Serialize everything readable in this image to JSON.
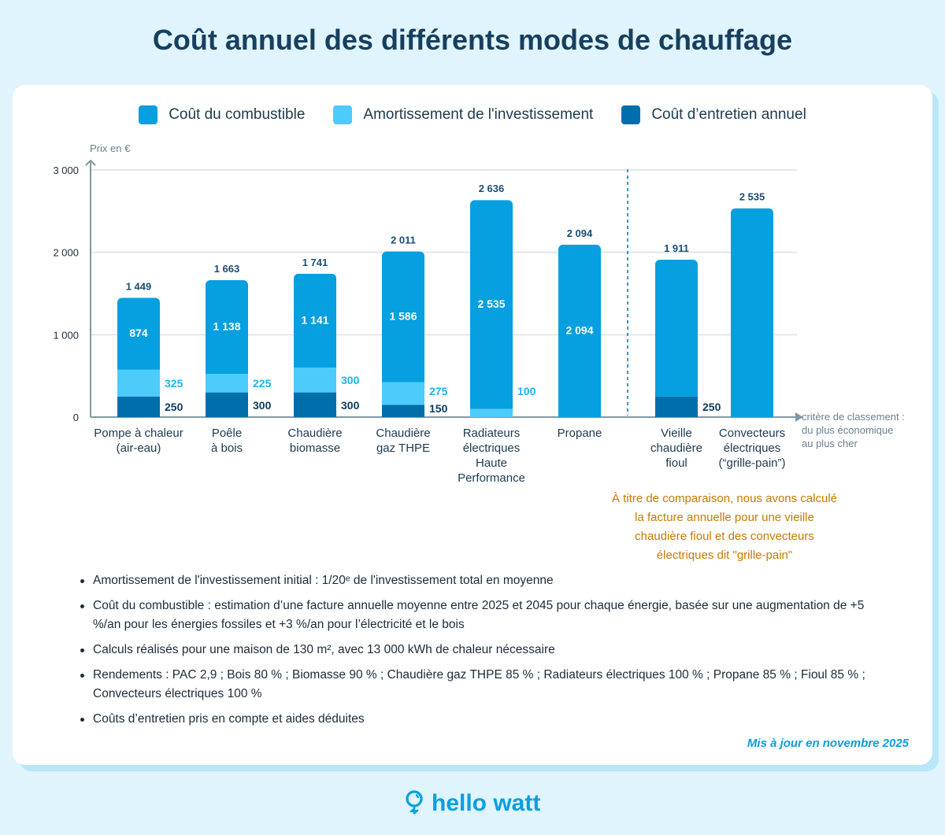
{
  "title": "Coût annuel des différents modes de chauffage",
  "colors": {
    "fuel": "#069fdf",
    "amortization": "#4dcbfb",
    "maintenance": "#006eab",
    "background": "#dff4fc",
    "accent_orange": "#c77a00"
  },
  "chart_data": {
    "type": "bar",
    "stacked": true,
    "ylabel": "Prix en €",
    "xlabel": "critère de classement : du plus économique au plus cher",
    "xlabel_lines": [
      "critère de classement :",
      "du plus économique",
      "au plus cher"
    ],
    "ylim": [
      0,
      3000
    ],
    "yticks": [
      0,
      1000,
      2000,
      3000
    ],
    "ytick_labels": [
      "0",
      "1 000",
      "2 000",
      "3 000"
    ],
    "grid": true,
    "legend_placement": "top",
    "categories": [
      [
        "Pompe à chaleur",
        "(air-eau)"
      ],
      [
        "Poêle",
        "à bois"
      ],
      [
        "Chaudière",
        "biomasse"
      ],
      [
        "Chaudière",
        "gaz THPE"
      ],
      [
        "Radiateurs",
        "électriques",
        "Haute",
        "Performance"
      ],
      [
        "Propane"
      ],
      [
        "Vieille",
        "chaudière",
        "fioul"
      ],
      [
        "Convecteurs",
        "électriques",
        "(“grille-pain”)"
      ]
    ],
    "series": [
      {
        "name": "Coût d’entretien annuel",
        "values": [
          250,
          300,
          300,
          150,
          0,
          0,
          250,
          0
        ],
        "labels": [
          "250",
          "300",
          "300",
          "150",
          "",
          "",
          "250",
          ""
        ]
      },
      {
        "name": "Amortissement de l'investissement",
        "values": [
          325,
          225,
          300,
          275,
          100,
          0,
          0,
          0
        ],
        "labels": [
          "325",
          "225",
          "300",
          "275",
          "100",
          "",
          "",
          ""
        ]
      },
      {
        "name": "Coût du combustible",
        "values": [
          874,
          1138,
          1141,
          1586,
          2535,
          2094,
          1661,
          2535
        ],
        "labels": [
          "874",
          "1 138",
          "1 141",
          "1 586",
          "2 535",
          "2 094",
          "",
          ""
        ]
      }
    ],
    "totals": [
      1449,
      1663,
      1741,
      2011,
      2636,
      2094,
      1911,
      2535
    ],
    "total_labels": [
      "1 449",
      "1 663",
      "1 741",
      "2 011",
      "2 636",
      "2 094",
      "1 911",
      "2 535"
    ],
    "separator_after_category": 6
  },
  "comparison_note": [
    "À titre de comparaison, nous avons calculé",
    "la facture annuelle pour une vieille",
    "chaudière fioul et des convecteurs",
    "électriques dit \"grille-pain\""
  ],
  "notes": [
    "Amortissement de l'investissement initial : 1/20ᵉ de l'investissement total en moyenne",
    "Coût du combustible : estimation d’une facture annuelle moyenne entre 2025 et 2045 pour chaque énergie, basée sur une augmentation de +5 %/an pour les énergies fossiles et +3 %/an pour l’électricité et le bois",
    "Calculs réalisés pour une maison de 130 m², avec 13 000 kWh de chaleur nécessaire",
    "Rendements : PAC 2,9 ; Bois 80 % ; Biomasse 90 % ; Chaudière gaz THPE 85 % ; Radiateurs électriques 100 % ; Propane 85 % ; Fioul 85 % ; Convecteurs électriques 100 %",
    "Coûts d’entretien pris en compte et aides déduites"
  ],
  "updated": "Mis à jour en novembre 2025",
  "logo": {
    "text": "hello watt",
    "icon": "lightbulb-icon"
  }
}
